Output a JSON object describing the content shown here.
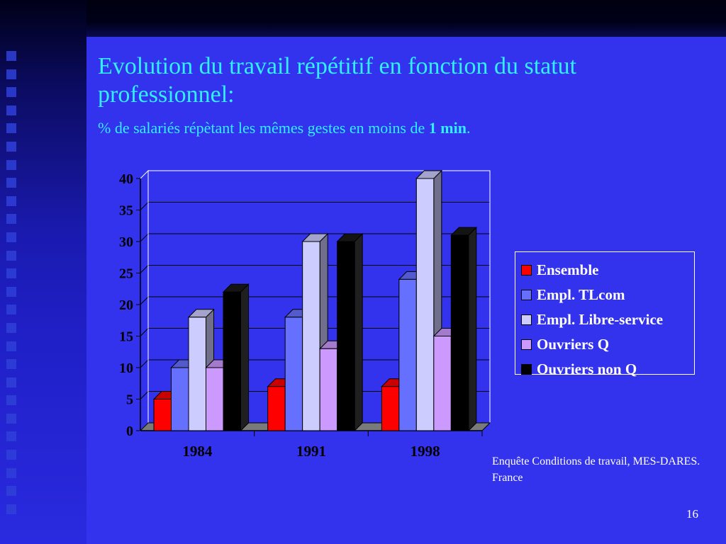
{
  "slide": {
    "title": "Evolution du travail répétitif en fonction du statut professionnel:",
    "subtitle_prefix": "% de salariés répètant les mêmes gestes en moins de ",
    "subtitle_bold": "1 min",
    "subtitle_suffix": ".",
    "source": "Enquête Conditions de travail, MES-DARES. France",
    "page_number": "16"
  },
  "colors": {
    "background": "#3333ee",
    "title": "#33eeff",
    "text": "#ffffff"
  },
  "chart_data": {
    "type": "bar",
    "style": "3d-clustered",
    "categories": [
      "1984",
      "1991",
      "1998"
    ],
    "series": [
      {
        "name": "Ensemble",
        "color": "#ff0000",
        "values": [
          5,
          7,
          7
        ]
      },
      {
        "name": "Empl.  TLcom",
        "color": "#6670ff",
        "values": [
          10,
          18,
          24
        ]
      },
      {
        "name": "Empl. Libre-service",
        "color": "#ccccff",
        "values": [
          18,
          30,
          40
        ]
      },
      {
        "name": "Ouvriers Q",
        "color": "#cc99ff",
        "values": [
          10,
          13,
          15
        ]
      },
      {
        "name": "Ouvriers non Q",
        "color": "#000000",
        "values": [
          22,
          30,
          31
        ]
      }
    ],
    "yticks": [
      "0",
      "5",
      "10",
      "15",
      "20",
      "25",
      "30",
      "35",
      "40"
    ],
    "ylim": [
      0,
      40
    ],
    "grid": true,
    "legend_position": "right"
  }
}
